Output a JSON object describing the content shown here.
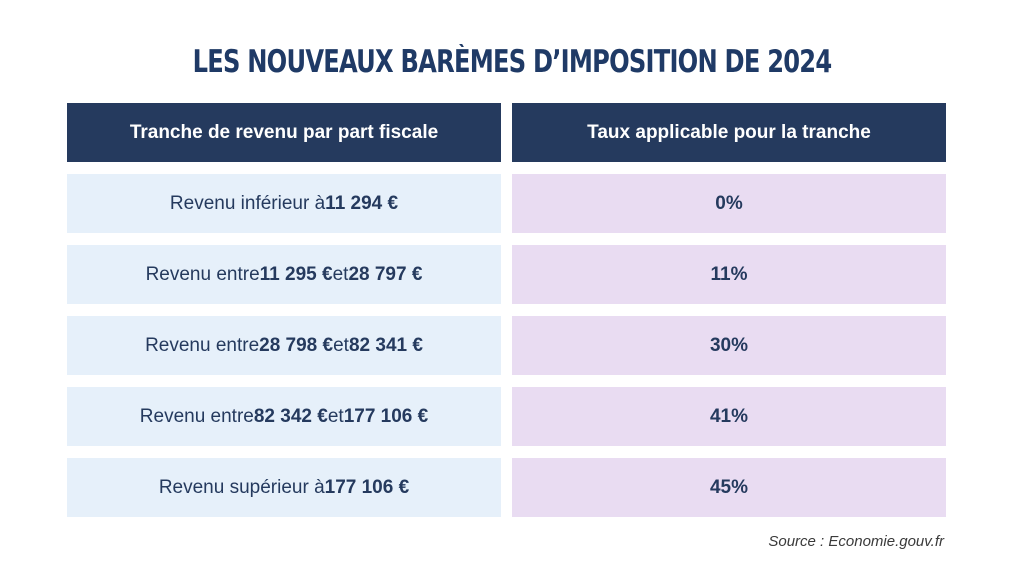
{
  "title": "LES NOUVEAUX BARÈMES D’IMPOSITION DE 2024",
  "table": {
    "headers": [
      "Tranche de revenu par part fiscale",
      "Taux applicable pour la tranche"
    ],
    "rows": [
      {
        "prefix": "Revenu inférieur à ",
        "amount1": "11 294 €",
        "connector": "",
        "amount2": "",
        "rate": "0%"
      },
      {
        "prefix": "Revenu entre ",
        "amount1": "11 295 €",
        "connector": " et ",
        "amount2": "28 797 €",
        "rate": "11%"
      },
      {
        "prefix": "Revenu entre ",
        "amount1": "28 798 €",
        "connector": " et ",
        "amount2": "82 341 €",
        "rate": "30%"
      },
      {
        "prefix": "Revenu entre ",
        "amount1": "82 342 €",
        "connector": " et ",
        "amount2": "177 106 €",
        "rate": "41%"
      },
      {
        "prefix": "Revenu supérieur à ",
        "amount1": "177 106 €",
        "connector": "",
        "amount2": "",
        "rate": "45%"
      }
    ]
  },
  "source": "Source : Economie.gouv.fr",
  "colors": {
    "header_bg": "#253a5e",
    "title": "#1f3a66",
    "left_row_bg": "#e6f0fa",
    "right_row_bg": "#e9dcf2"
  }
}
